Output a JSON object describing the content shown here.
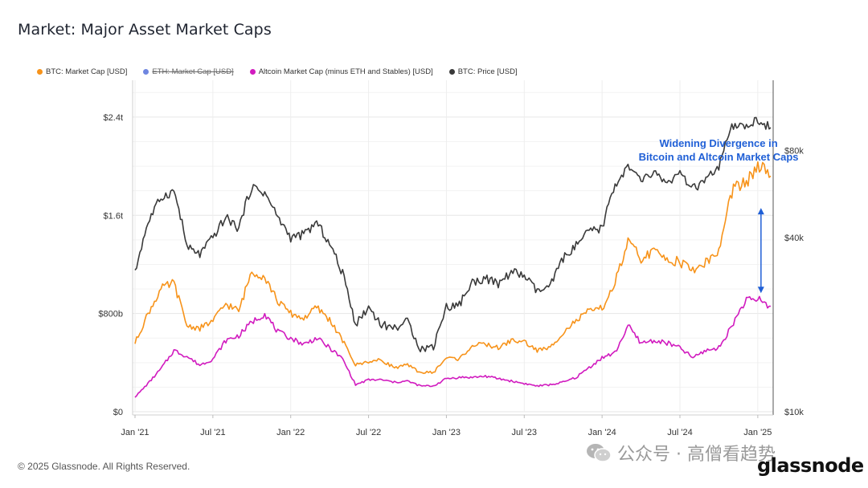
{
  "page": {
    "title": "Market: Major Asset Market Caps",
    "footer": "© 2025 Glassnode. All Rights Reserved.",
    "watermark": "公众号 · 高僧看趋势",
    "brand": "glassnode"
  },
  "colors": {
    "btc_mcap": "#f7931a",
    "eth_mcap": "#6f86e0",
    "altcoin": "#d11bbf",
    "btc_price": "#3a3a3a",
    "annotation": "#1f5fd6",
    "grid": "#ececec"
  },
  "legend": [
    {
      "key": "btc_mcap",
      "label": "BTC: Market Cap [USD]",
      "disabled": false
    },
    {
      "key": "eth_mcap",
      "label": "ETH: Market Cap [USD]",
      "disabled": true
    },
    {
      "key": "altcoin",
      "label": "Altcoin Market Cap (minus ETH and Stables) [USD]",
      "disabled": false
    },
    {
      "key": "btc_price",
      "label": "BTC: Price [USD]",
      "disabled": false
    }
  ],
  "chart_data": {
    "type": "line",
    "title": "Market: Major Asset Market Caps",
    "annotation": {
      "lines": [
        "Widening Divergence in",
        "Bitcoin and Altcoin Market Caps"
      ],
      "arrow_date": "2025-01"
    },
    "x": [
      "2021-01",
      "2021-02",
      "2021-03",
      "2021-04",
      "2021-05",
      "2021-06",
      "2021-07",
      "2021-08",
      "2021-09",
      "2021-10",
      "2021-11",
      "2021-12",
      "2022-01",
      "2022-02",
      "2022-03",
      "2022-04",
      "2022-05",
      "2022-06",
      "2022-07",
      "2022-08",
      "2022-09",
      "2022-10",
      "2022-11",
      "2022-12",
      "2023-01",
      "2023-02",
      "2023-03",
      "2023-04",
      "2023-05",
      "2023-06",
      "2023-07",
      "2023-08",
      "2023-09",
      "2023-10",
      "2023-11",
      "2023-12",
      "2024-01",
      "2024-02",
      "2024-03",
      "2024-04",
      "2024-05",
      "2024-06",
      "2024-07",
      "2024-08",
      "2024-09",
      "2024-10",
      "2024-11",
      "2024-12",
      "2025-01",
      "2025-02"
    ],
    "x_ticks": [
      "Jan '21",
      "Jul '21",
      "Jan '22",
      "Jul '22",
      "Jan '23",
      "Jul '23",
      "Jan '24",
      "Jul '24",
      "Jan '25"
    ],
    "x_tick_dates": [
      "2021-01",
      "2021-07",
      "2022-01",
      "2022-07",
      "2023-01",
      "2023-07",
      "2024-01",
      "2024-07",
      "2025-01"
    ],
    "y_left": {
      "ticks": [
        "$0",
        "$800b",
        "$1.6t",
        "$2.4t"
      ],
      "values": [
        0,
        800,
        1600,
        2400
      ],
      "range": [
        0,
        2700
      ],
      "unit": "billion USD"
    },
    "y_right": {
      "ticks": [
        "$10k",
        "$40k",
        "$80k"
      ],
      "values": [
        10000,
        40000,
        80000
      ],
      "scale": "log",
      "range": [
        10000,
        140000
      ]
    },
    "series": [
      {
        "key": "btc_mcap",
        "name": "BTC: Market Cap [USD]",
        "axis": "left",
        "values": [
          560,
          800,
          1000,
          1050,
          700,
          680,
          740,
          880,
          820,
          1150,
          1100,
          900,
          800,
          760,
          850,
          750,
          580,
          380,
          410,
          420,
          360,
          380,
          320,
          320,
          440,
          430,
          540,
          550,
          520,
          580,
          570,
          500,
          520,
          650,
          740,
          820,
          840,
          1050,
          1380,
          1250,
          1300,
          1250,
          1220,
          1150,
          1220,
          1300,
          1800,
          1850,
          2000,
          1920
        ]
      },
      {
        "key": "altcoin",
        "name": "Altcoin Market Cap (minus ETH and Stables) [USD]",
        "axis": "left",
        "values": [
          120,
          230,
          350,
          500,
          450,
          380,
          430,
          580,
          620,
          730,
          800,
          650,
          600,
          550,
          600,
          520,
          430,
          220,
          260,
          260,
          240,
          250,
          210,
          210,
          270,
          280,
          280,
          290,
          270,
          250,
          230,
          210,
          220,
          240,
          280,
          360,
          440,
          480,
          700,
          560,
          580,
          560,
          520,
          440,
          500,
          520,
          700,
          900,
          920,
          860
        ]
      },
      {
        "key": "btc_price",
        "name": "BTC: Price [USD]",
        "axis": "right",
        "values": [
          30000,
          45000,
          55000,
          58000,
          37000,
          35000,
          40000,
          47000,
          43000,
          60000,
          57000,
          47000,
          40000,
          41000,
          45000,
          38000,
          30000,
          20000,
          23000,
          20000,
          19500,
          20500,
          16500,
          16800,
          23000,
          23500,
          28000,
          29000,
          27500,
          30500,
          29500,
          26000,
          27000,
          34000,
          37500,
          42000,
          43000,
          61000,
          70000,
          63000,
          67000,
          62000,
          66000,
          59000,
          63000,
          70000,
          96000,
          97000,
          102000,
          96000
        ]
      }
    ]
  }
}
